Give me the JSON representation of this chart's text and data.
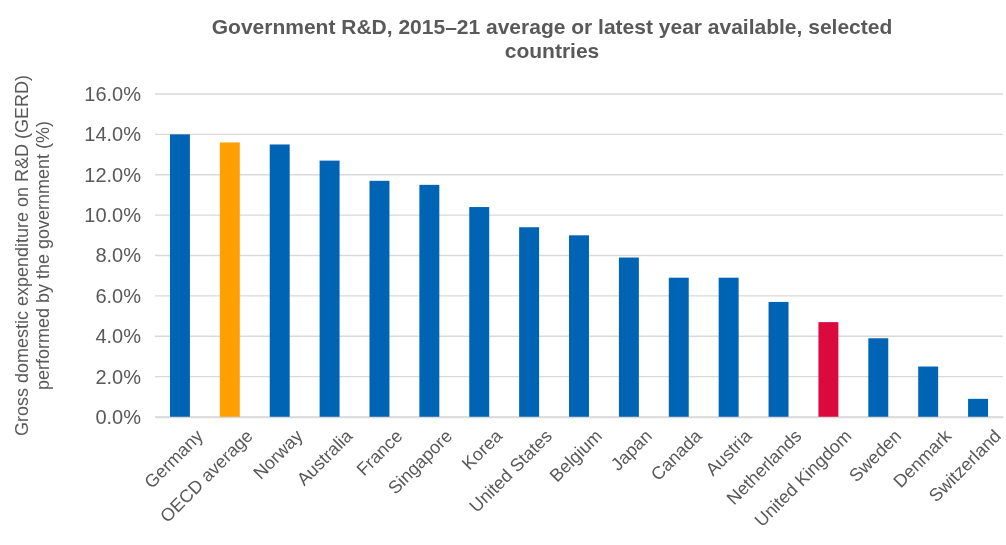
{
  "chart_data": {
    "type": "bar",
    "title": "Government R&D, 2015–21 average or latest year available, selected countries",
    "ylabel": "Gross domestic expenditure on R&D (GERD)\nperformed by the government (%)",
    "categories": [
      "Germany",
      "OECD average",
      "Norway",
      "Australia",
      "France",
      "Singapore",
      "Korea",
      "United States",
      "Belgium",
      "Japan",
      "Canada",
      "Austria",
      "Netherlands",
      "United Kingdom",
      "Sweden",
      "Denmark",
      "Switzerland"
    ],
    "values": [
      14.0,
      13.6,
      13.5,
      12.7,
      11.7,
      11.5,
      10.4,
      9.4,
      9.0,
      7.9,
      6.9,
      6.9,
      5.7,
      4.7,
      3.9,
      2.5,
      0.9
    ],
    "colors": [
      "#0064b4",
      "#ffa000",
      "#0064b4",
      "#0064b4",
      "#0064b4",
      "#0064b4",
      "#0064b4",
      "#0064b4",
      "#0064b4",
      "#0064b4",
      "#0064b4",
      "#0064b4",
      "#0064b4",
      "#dc0a3c",
      "#0064b4",
      "#0064b4",
      "#0064b4"
    ],
    "ylim": [
      0,
      16
    ],
    "yticks": [
      {
        "value": 0,
        "label": "0.0%"
      },
      {
        "value": 2,
        "label": "2.0%"
      },
      {
        "value": 4,
        "label": "4.0%"
      },
      {
        "value": 6,
        "label": "6.0%"
      },
      {
        "value": 8,
        "label": "8.0%"
      },
      {
        "value": 10,
        "label": "10.0%"
      },
      {
        "value": 12,
        "label": "12.0%"
      },
      {
        "value": 14,
        "label": "14.0%"
      },
      {
        "value": 16,
        "label": "16.0%"
      }
    ],
    "grid": "y"
  }
}
